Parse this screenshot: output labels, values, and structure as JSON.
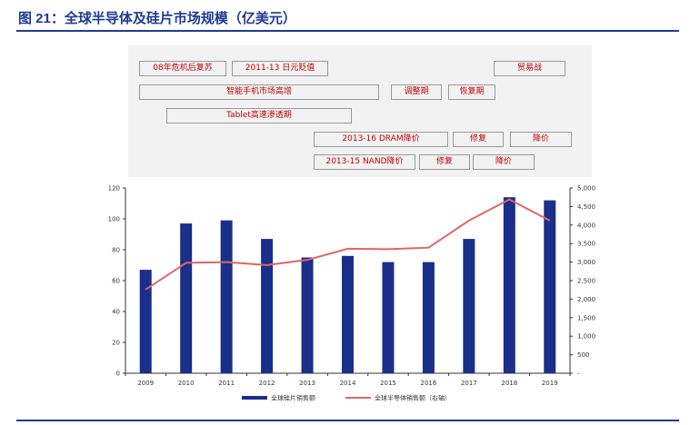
{
  "figure": {
    "title": "图 21：全球半导体及硅片市场规模（亿美元）"
  },
  "timeline": [
    {
      "id": "b1",
      "text": "08年危机后复苏"
    },
    {
      "id": "b2",
      "text": "2011-13 日元贬值"
    },
    {
      "id": "b3",
      "text": "贸易战"
    },
    {
      "id": "b4",
      "text": "智能手机市场高增"
    },
    {
      "id": "b5",
      "text": "调整期"
    },
    {
      "id": "b6",
      "text": "恢复期"
    },
    {
      "id": "b7",
      "text": "Tablet高速渗透期"
    },
    {
      "id": "b8",
      "text": "2013-16 DRAM降价"
    },
    {
      "id": "b9",
      "text": "修复"
    },
    {
      "id": "b10",
      "text": "降价"
    },
    {
      "id": "b11",
      "text": "2013-15 NAND降价"
    },
    {
      "id": "b12",
      "text": "修复"
    },
    {
      "id": "b13",
      "text": "降价"
    }
  ],
  "chart_data": {
    "type": "bar",
    "categories": [
      "2009",
      "2010",
      "2011",
      "2012",
      "2013",
      "2014",
      "2015",
      "2016",
      "2017",
      "2018",
      "2019"
    ],
    "series": [
      {
        "name": "全球硅片销售额",
        "type": "bar",
        "axis": "left",
        "color": "#1a2f8a",
        "values": [
          67,
          97,
          99,
          87,
          75,
          76,
          72,
          72,
          87,
          114,
          112
        ]
      },
      {
        "name": "全球半导体销售额（右轴）",
        "type": "line",
        "axis": "right",
        "color": "#e06666",
        "values": [
          2260,
          2980,
          3000,
          2920,
          3060,
          3360,
          3350,
          3390,
          4120,
          4690,
          4120
        ]
      }
    ],
    "y_left": {
      "min": 0,
      "max": 120,
      "ticks": [
        "0",
        "20",
        "40",
        "60",
        "80",
        "100",
        "120"
      ]
    },
    "y_right": {
      "min": 0,
      "max": 5000,
      "ticks": [
        "-",
        "500",
        "1,000",
        "1,500",
        "2,000",
        "2,500",
        "3,000",
        "3,500",
        "4,000",
        "4,500",
        "5,000"
      ]
    },
    "legend_position": "bottom"
  }
}
